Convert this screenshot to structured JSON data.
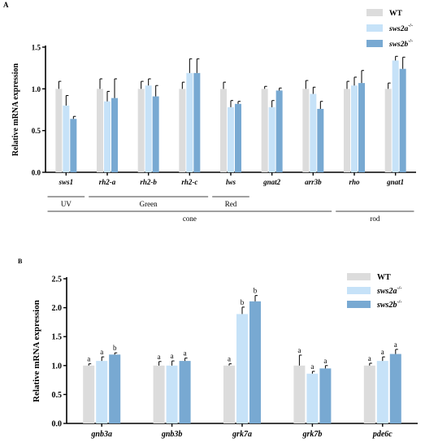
{
  "colors": {
    "WT": "#dcdcdc",
    "sws2a": "#c6e2f8",
    "sws2b": "#78a9d2",
    "axis": "#000000",
    "error": "#000000"
  },
  "panelA": {
    "label": "A"
  },
  "panelB": {
    "label": "B"
  },
  "chart_data": [
    {
      "type": "bar",
      "panel": "A",
      "ylabel": "Relative mRNA expression",
      "ylim": [
        0,
        1.5
      ],
      "yticks": [
        "0.0",
        "0.5",
        "1.0",
        "1.5"
      ],
      "categories": [
        "sws1",
        "rh2-a",
        "rh2-b",
        "rh2-c",
        "lws",
        "gnat2",
        "arr3b",
        "rho",
        "gnat1"
      ],
      "series": [
        {
          "key": "WT",
          "legend_main": "WT",
          "legend_sup": "",
          "values": [
            1.0,
            1.0,
            1.0,
            1.0,
            1.0,
            1.0,
            1.0,
            1.0,
            1.0
          ],
          "errors": [
            0.09,
            0.12,
            0.09,
            0.08,
            0.08,
            0.03,
            0.1,
            0.09,
            0.07
          ]
        },
        {
          "key": "sws2a",
          "legend_main": "sws2a",
          "legend_sup": "-/-",
          "values": [
            0.8,
            0.85,
            1.04,
            1.19,
            0.78,
            0.78,
            0.94,
            1.04,
            1.34
          ],
          "errors": [
            0.12,
            0.12,
            0.08,
            0.17,
            0.08,
            0.08,
            0.08,
            0.1,
            0.05
          ]
        },
        {
          "key": "sws2b",
          "legend_main": "sws2b",
          "legend_sup": "-/-",
          "values": [
            0.64,
            0.89,
            0.91,
            1.19,
            0.82,
            0.98,
            0.76,
            1.07,
            1.24
          ],
          "errors": [
            0.03,
            0.23,
            0.13,
            0.17,
            0.03,
            0.03,
            0.09,
            0.15,
            0.14
          ]
        }
      ],
      "annotations": {
        "groups": [
          {
            "label": "UV",
            "from": 0,
            "to": 0
          },
          {
            "label": "Green",
            "from": 1,
            "to": 3
          },
          {
            "label": "Red",
            "from": 4,
            "to": 4
          }
        ],
        "classes": [
          {
            "label": "cone",
            "from": 0,
            "to": 6
          },
          {
            "label": "rod",
            "from": 7,
            "to": 8
          }
        ]
      },
      "legend_position": "top-right"
    },
    {
      "type": "bar",
      "panel": "B",
      "ylabel": "Relative mRNA expression",
      "ylim": [
        0,
        2.5
      ],
      "yticks": [
        "0.0",
        "0.5",
        "1.0",
        "1.5",
        "2.0",
        "2.5"
      ],
      "categories": [
        "gnb3a",
        "gnb3b",
        "grk7a",
        "grk7b",
        "pde6c"
      ],
      "series": [
        {
          "key": "WT",
          "legend_main": "WT",
          "legend_sup": "",
          "values": [
            1.0,
            1.0,
            1.0,
            1.0,
            1.0
          ],
          "errors": [
            0.03,
            0.07,
            0.03,
            0.18,
            0.04
          ],
          "letters": [
            "a",
            "a",
            "a",
            "a",
            "a"
          ]
        },
        {
          "key": "sws2a",
          "legend_main": "sws2a",
          "legend_sup": "-/-",
          "values": [
            1.08,
            1.0,
            1.89,
            0.86,
            1.08
          ],
          "errors": [
            0.07,
            0.08,
            0.12,
            0.04,
            0.07
          ],
          "letters": [
            "a",
            "a",
            "b",
            "a",
            "a"
          ]
        },
        {
          "key": "sws2b",
          "legend_main": "sws2b",
          "legend_sup": "-/-",
          "values": [
            1.19,
            1.08,
            2.11,
            0.95,
            1.2
          ],
          "errors": [
            0.03,
            0.05,
            0.1,
            0.05,
            0.08
          ],
          "letters": [
            "b",
            "a",
            "b",
            "a",
            "a"
          ]
        }
      ],
      "legend_position": "top-right"
    }
  ]
}
